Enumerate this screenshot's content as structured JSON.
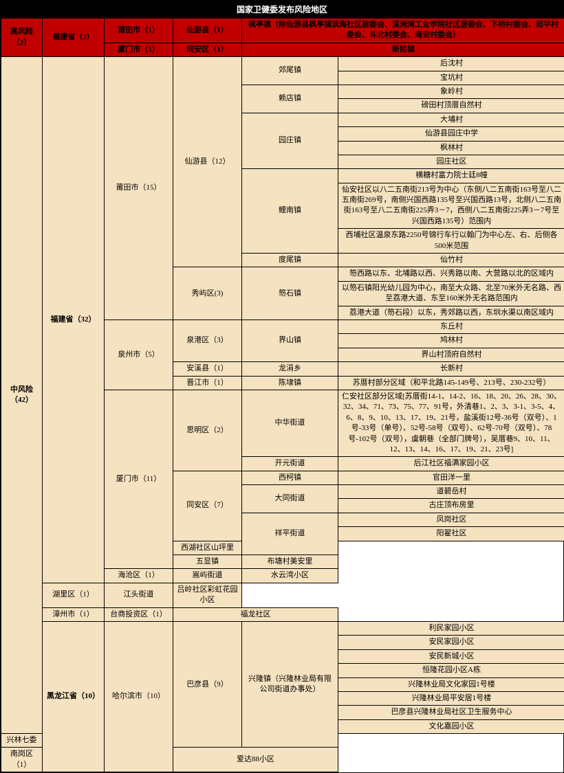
{
  "title": "国家卫健委发布风险地区",
  "colors": {
    "high": "#c00000",
    "medium": "#f5e2c0",
    "border": "#000000",
    "titleBg": "#000000",
    "titleFg": "#ffffff"
  },
  "fontsize": {
    "title": 12,
    "cell": 11
  },
  "hi": {
    "risk": "高风险（2）",
    "prov": "福建省（2）",
    "r1_city": "莆田市（1）",
    "r1_district": "仙游县（1）",
    "r1_detail": "枫亭镇（除仙游县枫亭镇滨海社区居委会、溪洲湾工业学院社区居委会、下桥村委会、和平村委会、斗北村委会、海安村委会）",
    "r2_city": "厦门市（1）",
    "r2_district": "同安区（1）",
    "r2_detail": "新民镇"
  },
  "md": {
    "risk": "中风险（42）",
    "prov_fj": "福建省（32）",
    "prov_hlj": "黑龙江省（10）",
    "putian": "莆田市（15）",
    "xianyou": "仙游县（12）",
    "jiaowei": "郊尾镇",
    "jiaowei_v1": "后沈村",
    "jiaowei_v2": "宝坑村",
    "laidian": "赖店镇",
    "laidian_v1": "象岭村",
    "laidian_v2": "磅田村顶厝自然村",
    "yuanzhuang": "园庄镇",
    "yuan_v1": "大埔村",
    "yuan_v2": "仙游县园庄中学",
    "yuan_v3": "枫林村",
    "yuan_v4": "园庄社区",
    "linan": "鲤南镇",
    "linan_v1": "横糖村富力院士廷8幢",
    "linan_v2": "仙安社区以八二五南街213号为中心（东侧八二五南街163号至八二五南街269号，南侧兴国西路135号至兴国西路13号，北侧八二五南街163号至八二五南街225弄3－7，西侧八二五南街225弄3－7号至兴国西路135号）范围内",
    "linan_v3": "西埔社区温泉东路2250号锦行车行以翰门为中心左、右、后侧各500米范围",
    "duwei": "度尾镇",
    "duwei_v": "仙竹村",
    "xiuyu": "秀屿区(3)",
    "sushi": "笏石镇",
    "sushi_v1": "笏西路以东、北埔路以西、兴秀路以南、大营路以北的区域内",
    "sushi_v2": "以笏石镇阳光幼儿园为中心，南至大众路、北至70米外无名路、西至荔港大道、东至160米外无名路范围内",
    "sushi_v3": "荔港大道（笏石段）以东，秀郊路以西，东圳水渠以南区域内",
    "quanzhou": "泉州市（5）",
    "quangang": "泉港区（3）",
    "jieshan": "界山镇",
    "js_v1": "东丘村",
    "js_v2": "鸠林村",
    "js_v3": "界山村顶府自然村",
    "anxi": "安溪县（1）",
    "longjuan": "龙涓乡",
    "longjuan_v": "长新村",
    "jinjiang": "晋江市（1）",
    "chendai": "陈埭镇",
    "chendai_v": "苏厝村部分区域（和平北路145-149号、213号、230-232号）",
    "xiamen": "厦门市（11）",
    "siming": "思明区（2）",
    "zhonghua": "中华街道",
    "zhonghua_v": "仁安社区部分区域[苏厝街14-1、14-2、16、18、20、26、28、30、32、34、71、73、75、77、91号，外清巷1、2、3、3-1、3-5、4、6、8、9、10、13、17、19、21号，盐溪街12号-36号（双号）、1号-33号（单号）、52号-58号（双号）、62号-70号（双号）、78号-102号（双号），虞朝巷（全部门牌号），吴厝巷9、10、11、12、13、14、16、17、19、21、23号]",
    "kaiyuan": "开元街道",
    "kaiyuan_v": "后江社区福满家园小区",
    "tongan": "同安区（7）",
    "xike": "西柯镇",
    "xike_v": "官田洋一里",
    "datong": "大同街道",
    "datong_v1": "道碧岳村",
    "datong_v2": "古庄顶布房里",
    "xiangping": "祥平街道",
    "xp_v1": "凤岗社区",
    "xp_v2": "阳翟社区",
    "xp_v3": "西湖社区山坪里",
    "wuxian": "五显镇",
    "wuxian_v": "布塘村美安里",
    "haicang": "海沧区（1）",
    "songyu": "嵩屿街道",
    "songyu_v": "水云湾小区",
    "huli": "湖里区（1）",
    "jiangtou": "江头街道",
    "jiangtou_v": "吕岭社区彩虹花园小区",
    "zhangzhou": "漳州市（1）",
    "taishan": "台商投资区（1）",
    "fulong": "福龙社区",
    "harbin": "哈尔滨市（10）",
    "bayan": "巴彦县（9）",
    "xinglong": "兴隆镇（兴隆林业局有限公司街道办事处）",
    "xl_v1": "利民家园小区",
    "xl_v2": "安民家园小区",
    "xl_v3": "安民新城小区",
    "xl_v4": "恒隆花园小区A栋",
    "xl_v5": "兴隆林业局文化家园1号楼",
    "xl_v6": "兴隆林业局平安居1号楼",
    "xl_v7": "巴彦县兴隆林业局社区卫生服务中心",
    "xl_v8": "文化嘉园小区",
    "xl_v9": "兴林七委",
    "nangang": "南岗区（1）",
    "nangang_v": "爱达88小区"
  }
}
